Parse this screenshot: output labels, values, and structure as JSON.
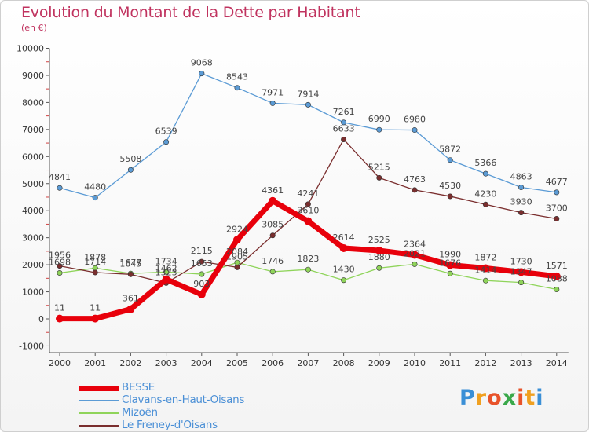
{
  "header": {
    "title": "Evolution du Montant de la Dette par Habitant",
    "subtitle": "(en €)"
  },
  "logo": {
    "text": "Proxiti",
    "colors": [
      "#3a8fd6",
      "#f0a020",
      "#e8532a",
      "#3aa84a",
      "#e8532a",
      "#f0a020",
      "#3a8fd6"
    ]
  },
  "chart_data": {
    "type": "line",
    "title": "Evolution du Montant de la Dette par Habitant",
    "subtitle": "(en €)",
    "x": [
      "2000",
      "2001",
      "2002",
      "2003",
      "2004",
      "2005",
      "2006",
      "2007",
      "2008",
      "2009",
      "2010",
      "2011",
      "2012",
      "2013",
      "2014"
    ],
    "ylim": [
      -1000,
      10000
    ],
    "yticks": [
      "-1000",
      "0",
      "1000",
      "2000",
      "3000",
      "4000",
      "5000",
      "6000",
      "7000",
      "8000",
      "9000",
      "10000"
    ],
    "grid": false,
    "legend_position": "bottom-left",
    "series": [
      {
        "name": "BESSE",
        "color": "#e8000b",
        "emphasis": true,
        "values": [
          11,
          11,
          361,
          1462,
          903,
          2924,
          4361,
          3610,
          2614,
          2525,
          2364,
          1990,
          1872,
          1730,
          1571
        ],
        "labels": [
          "11",
          "11",
          "361",
          "1462",
          "903",
          "2924",
          "4361",
          "3610",
          "2614",
          "2525",
          "2364",
          "1990",
          "1872",
          "1730",
          "1571"
        ]
      },
      {
        "name": "Clavans-en-Haut-Oisans",
        "color": "#5b9bd5",
        "emphasis": false,
        "values": [
          4841,
          4480,
          5508,
          6539,
          9068,
          8543,
          7971,
          7914,
          7261,
          6990,
          6980,
          5872,
          5366,
          4863,
          4677
        ],
        "labels": [
          "4841",
          "4480",
          "5508",
          "6539",
          "9068",
          "8543",
          "7971",
          "7914",
          "7261",
          "6990",
          "6980",
          "5872",
          "5366",
          "4863",
          "4677"
        ]
      },
      {
        "name": "Mizoën",
        "color": "#8fd45a",
        "emphasis": false,
        "values": [
          1698,
          1878,
          1677,
          1734,
          1653,
          2084,
          1746,
          1823,
          1430,
          1880,
          2021,
          1676,
          1414,
          1347,
          1088
        ],
        "labels": [
          "1698",
          "1878",
          "1677",
          "1734",
          "1653",
          "2084",
          "1746",
          "1823",
          "1430",
          "1880",
          "2021",
          "1676",
          "1414",
          "1347",
          "1088"
        ]
      },
      {
        "name": "Le Freney-d'Oisans",
        "color": "#7a2e2e",
        "emphasis": false,
        "values": [
          1956,
          1714,
          1645,
          1323,
          2115,
          1905,
          3085,
          4241,
          6633,
          5215,
          4763,
          4530,
          4230,
          3930,
          3700
        ],
        "labels": [
          "1956",
          "1714",
          "1645",
          "1323",
          "2115",
          "1905",
          "3085",
          "4241",
          "6633",
          "5215",
          "4763",
          "4530",
          "4230",
          "3930",
          "3700"
        ]
      }
    ]
  }
}
